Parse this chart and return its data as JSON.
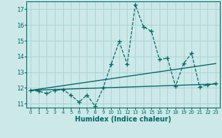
{
  "xlabel": "Humidex (Indice chaleur)",
  "background_color": "#cce8e8",
  "grid_color": "#aad4d4",
  "line_color": "#006666",
  "xlim": [
    -0.5,
    23.5
  ],
  "ylim": [
    10.75,
    17.5
  ],
  "xticks": [
    0,
    1,
    2,
    3,
    4,
    5,
    6,
    7,
    8,
    9,
    10,
    11,
    12,
    13,
    14,
    15,
    16,
    17,
    18,
    19,
    20,
    21,
    22,
    23
  ],
  "yticks": [
    11,
    12,
    13,
    14,
    15,
    16,
    17
  ],
  "main_x": [
    0,
    1,
    2,
    3,
    4,
    5,
    6,
    7,
    8,
    9,
    10,
    11,
    12,
    13,
    14,
    15,
    16,
    17,
    18,
    19,
    20,
    21,
    22,
    23
  ],
  "main_y": [
    11.85,
    11.8,
    11.65,
    11.85,
    11.9,
    11.55,
    11.1,
    11.55,
    10.85,
    12.0,
    13.5,
    14.95,
    13.5,
    17.3,
    15.9,
    15.6,
    13.8,
    13.9,
    12.1,
    13.55,
    14.2,
    12.05,
    12.2,
    12.3
  ],
  "trend1_x": [
    0,
    23
  ],
  "trend1_y": [
    11.85,
    13.55
  ],
  "trend2_x": [
    0,
    23
  ],
  "trend2_y": [
    11.85,
    12.25
  ]
}
